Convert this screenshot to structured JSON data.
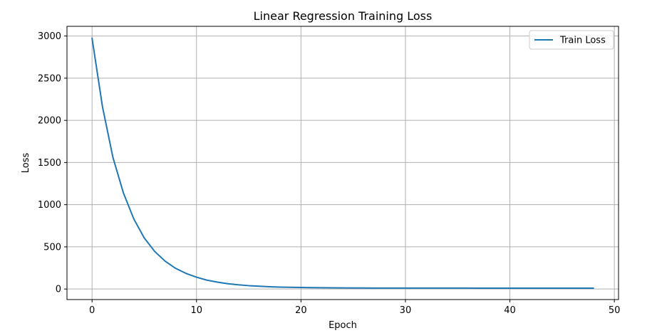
{
  "chart_data": {
    "type": "line",
    "title": "Linear Regression Training Loss",
    "xlabel": "Epoch",
    "ylabel": "Loss",
    "xlim": [
      -2.4,
      50.4
    ],
    "ylim": [
      -125,
      3115
    ],
    "xticks": [
      0,
      10,
      20,
      30,
      40,
      50
    ],
    "yticks": [
      0,
      500,
      1000,
      1500,
      2000,
      2500,
      3000
    ],
    "grid": true,
    "legend_position": "upper-right",
    "series": [
      {
        "name": "Train Loss",
        "color": "#1f77b4",
        "x": [
          0,
          1,
          2,
          3,
          4,
          5,
          6,
          7,
          8,
          9,
          10,
          11,
          12,
          13,
          14,
          15,
          16,
          17,
          18,
          19,
          20,
          21,
          22,
          23,
          24,
          25,
          26,
          27,
          28,
          29,
          30,
          31,
          32,
          33,
          34,
          35,
          36,
          37,
          38,
          39,
          40,
          41,
          42,
          43,
          44,
          45,
          46,
          47,
          48
        ],
        "values": [
          2975,
          2160,
          1560,
          1140,
          830,
          605,
          445,
          330,
          245,
          185,
          140,
          105,
          82,
          63,
          50,
          40,
          33,
          27,
          23,
          20,
          18,
          16,
          15,
          14,
          13,
          12.5,
          12,
          11.5,
          11.3,
          11.1,
          11,
          10.9,
          10.8,
          10.7,
          10.7,
          10.6,
          10.6,
          10.5,
          10.5,
          10.5,
          10.5,
          10.4,
          10.4,
          10.4,
          10.4,
          10.4,
          10.4,
          10.4,
          10.4
        ]
      }
    ]
  }
}
